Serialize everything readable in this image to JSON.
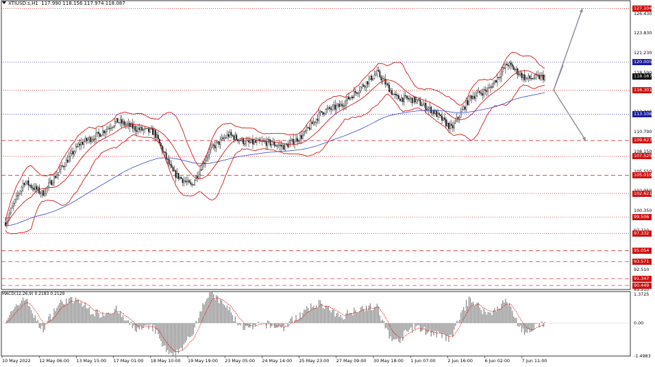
{
  "header": {
    "symbol_label": "XTIUSD.s,H1",
    "ohlc": "117.990 118.156 117.974 118.087"
  },
  "macd": {
    "label": "MACD(12,26,9) 0.2183 0.2129",
    "axis": {
      "top": "1.3725",
      "zero": "0.00",
      "bottom": "-1.4983"
    }
  },
  "price_axis": {
    "scale_labels": [
      "126.430",
      "123.830",
      "121.230",
      "118.590",
      "113.440",
      "110.790",
      "108.150",
      "105.550",
      "102.950",
      "100.350",
      "97.710",
      "92.510",
      "89.910"
    ],
    "levels": [
      {
        "label": "127.104",
        "price": 127.104,
        "color": "#d01010",
        "style": "dotted"
      },
      {
        "label": "120.005",
        "price": 120.005,
        "color": "#1a1aa0",
        "style": "dotted"
      },
      {
        "label": "118.087",
        "price": 118.087,
        "color": "#000000",
        "style": "current"
      },
      {
        "label": "116.301",
        "price": 116.301,
        "color": "#d01010",
        "style": "dotted"
      },
      {
        "label": "113.106",
        "price": 113.106,
        "color": "#1a1aa0",
        "style": "dotted"
      },
      {
        "label": "109.627",
        "price": 109.627,
        "color": "#d01010",
        "style": "dashed"
      },
      {
        "label": "107.525",
        "price": 107.525,
        "color": "#d01010",
        "style": "dotted"
      },
      {
        "label": "105.019",
        "price": 105.019,
        "color": "#d01010",
        "style": "dashed"
      },
      {
        "label": "102.621",
        "price": 102.621,
        "color": "#d01010",
        "style": "dotted"
      },
      {
        "label": "99.506",
        "price": 99.506,
        "color": "#d01010",
        "style": "dotted"
      },
      {
        "label": "97.332",
        "price": 97.332,
        "color": "#d01010",
        "style": "dotted"
      },
      {
        "label": "95.054",
        "price": 95.054,
        "color": "#d01010",
        "style": "dashed"
      },
      {
        "label": "93.571",
        "price": 93.571,
        "color": "#d01010",
        "style": "dashed"
      },
      {
        "label": "91.347",
        "price": 91.347,
        "color": "#d01010",
        "style": "dashed"
      },
      {
        "label": "90.449",
        "price": 90.449,
        "color": "#d01010",
        "style": "dashed"
      }
    ]
  },
  "time_axis": {
    "labels": [
      "10 May 2022",
      "12 May 06:00",
      "13 May 15:00",
      "17 May 01:00",
      "18 May 10:00",
      "19 May 19:00",
      "23 May 05:00",
      "24 May 14:00",
      "25 May 23:00",
      "27 May 09:00",
      "30 May 18:00",
      "1 Jun 07:00",
      "2 Jun 16:00",
      "6 Jun 02:00",
      "7 Jun 11:00"
    ]
  },
  "colors": {
    "bollinger": "#d41414",
    "moving_average": "#3046c8",
    "candles": "#1a1a1a",
    "macd_hist": "#8c8c8c",
    "macd_signal": "#d41414",
    "arrows": "#8a8a9a"
  },
  "chart_data": {
    "type": "candlestick",
    "instrument": "XTIUSD.s",
    "timeframe": "H1",
    "x_range": [
      "10 May 2022",
      "7 Jun 11:00"
    ],
    "ylim": [
      89.91,
      127.5
    ],
    "close_path": [
      [
        "10 May 2022",
        98.8
      ],
      [
        "11 May",
        104.2
      ],
      [
        "12 May 06:00",
        102.6
      ],
      [
        "12 May 18:00",
        106.0
      ],
      [
        "13 May 15:00",
        109.2
      ],
      [
        "16 May",
        110.4
      ],
      [
        "17 May 01:00",
        112.2
      ],
      [
        "17 May 12:00",
        111.2
      ],
      [
        "18 May 00:00",
        110.7
      ],
      [
        "18 May 10:00",
        105.4
      ],
      [
        "18 May 20:00",
        103.6
      ],
      [
        "19 May 19:00",
        108.4
      ],
      [
        "20 May",
        110.4
      ],
      [
        "23 May 05:00",
        109.3
      ],
      [
        "24 May 14:00",
        109.4
      ],
      [
        "25 May",
        108.8
      ],
      [
        "25 May 23:00",
        110.3
      ],
      [
        "26 May",
        113.4
      ],
      [
        "27 May 09:00",
        114.2
      ],
      [
        "29 May",
        116.4
      ],
      [
        "30 May 18:00",
        118.6
      ],
      [
        "31 May",
        115.3
      ],
      [
        "1 Jun 07:00",
        115.0
      ],
      [
        "1 Jun 20:00",
        113.5
      ],
      [
        "2 Jun 06:00",
        111.2
      ],
      [
        "2 Jun 16:00",
        115.4
      ],
      [
        "3 Jun",
        116.4
      ],
      [
        "6 Jun 02:00",
        119.8
      ],
      [
        "6 Jun 20:00",
        117.8
      ],
      [
        "7 Jun 11:00",
        118.087
      ]
    ],
    "last_ohlc": {
      "open": 117.99,
      "high": 118.156,
      "low": 117.974,
      "close": 118.087
    },
    "macd": {
      "fast": 12,
      "slow": 26,
      "signal": 9,
      "main": 0.2183,
      "signal_value": 0.2129,
      "ylim": [
        -1.4983,
        1.3725
      ]
    },
    "projection_scenarios": [
      {
        "direction": "up",
        "target_price": 127.1
      },
      {
        "direction": "down",
        "target_price": 109.6
      }
    ]
  }
}
